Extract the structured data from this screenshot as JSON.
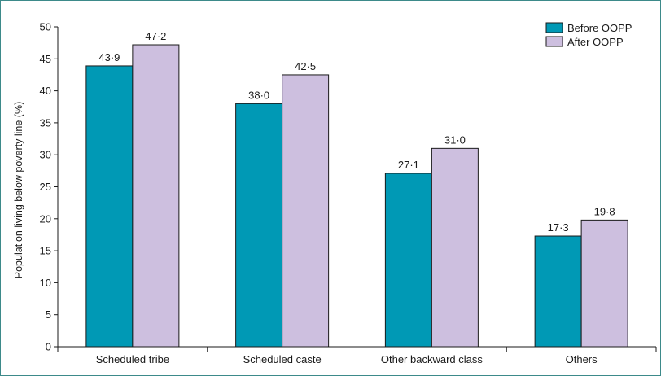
{
  "chart_data": {
    "type": "bar",
    "categories": [
      "Scheduled tribe",
      "Scheduled caste",
      "Other backward class",
      "Others"
    ],
    "series": [
      {
        "name": "Before OOPP",
        "values": [
          43.9,
          38.0,
          27.1,
          17.3
        ],
        "labels": [
          "43·9",
          "38·0",
          "27·1",
          "17·3"
        ],
        "color": "#0099b5"
      },
      {
        "name": "After OOPP",
        "values": [
          47.2,
          42.5,
          31.0,
          19.8
        ],
        "labels": [
          "47·2",
          "42·5",
          "31·0",
          "19·8"
        ],
        "color": "#cdbfdf"
      }
    ],
    "ylabel": "Population living below poverty line (%)",
    "ylim": [
      0,
      50
    ],
    "yticks": [
      0,
      5,
      10,
      15,
      20,
      25,
      30,
      35,
      40,
      45,
      50
    ],
    "grid": false,
    "legend": "top-right",
    "frame_color": "#3d8a8a"
  }
}
